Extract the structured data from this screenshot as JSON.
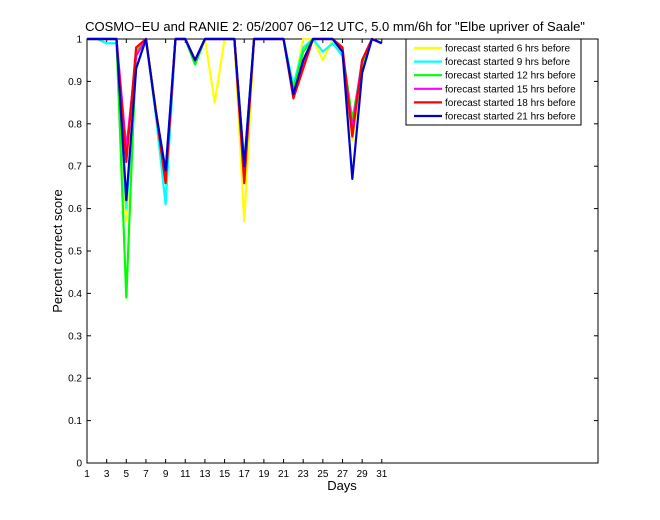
{
  "chart_data": {
    "type": "line",
    "title": "COSMO−EU and RANIE 2: 05/2007 06−12 UTC, 5.0 mm/6h for \"Elbe upriver of Saale\"",
    "xlabel": "Days",
    "ylabel": "Percent correct score",
    "xlim": [
      1,
      53
    ],
    "ylim": [
      0,
      1
    ],
    "xticks": [
      1,
      3,
      5,
      7,
      9,
      11,
      13,
      15,
      17,
      19,
      21,
      23,
      25,
      27,
      29,
      31
    ],
    "yticks": [
      0,
      0.1,
      0.2,
      0.3,
      0.4,
      0.5,
      0.6,
      0.7,
      0.8,
      0.9,
      1
    ],
    "ytick_labels": [
      "0",
      "0.1",
      "0.2",
      "0.3",
      "0.4",
      "0.5",
      "0.6",
      "0.7",
      "0.8",
      "0.9",
      "1"
    ],
    "legend_position": "top-right",
    "grid": false,
    "x": [
      1,
      2,
      3,
      4,
      5,
      6,
      7,
      8,
      9,
      10,
      11,
      12,
      13,
      14,
      15,
      16,
      17,
      18,
      19,
      20,
      21,
      22,
      23,
      24,
      25,
      26,
      27,
      28,
      29,
      30,
      31
    ],
    "series": [
      {
        "name": "forecast started 6 hrs before",
        "color": "#ffff00",
        "values": [
          1,
          1,
          1,
          1,
          0.57,
          0.96,
          1,
          0.84,
          0.67,
          1,
          1,
          0.95,
          1,
          0.85,
          1,
          1,
          0.57,
          1,
          1,
          1,
          1,
          0.88,
          1,
          1,
          0.95,
          1,
          0.96,
          0.76,
          0.94,
          1,
          0.99
        ]
      },
      {
        "name": "forecast started 9 hrs before",
        "color": "#00ffff",
        "values": [
          1,
          1,
          0.99,
          0.99,
          0.6,
          0.93,
          1,
          0.82,
          0.61,
          1,
          1,
          0.94,
          1,
          1,
          1,
          1,
          0.71,
          1,
          1,
          1,
          1,
          0.89,
          0.98,
          1,
          0.97,
          0.99,
          0.96,
          0.8,
          0.95,
          1,
          0.99
        ]
      },
      {
        "name": "forecast started 12 hrs before",
        "color": "#00ff00",
        "values": [
          1,
          1,
          1,
          1,
          0.39,
          0.97,
          1,
          0.83,
          0.66,
          1,
          1,
          0.94,
          1,
          1,
          1,
          1,
          0.7,
          1,
          1,
          1,
          1,
          0.88,
          0.97,
          1,
          1,
          1,
          0.97,
          0.81,
          0.94,
          1,
          0.99
        ]
      },
      {
        "name": "forecast started 15 hrs before",
        "color": "#ff00ff",
        "values": [
          1,
          1,
          1,
          1,
          0.74,
          0.96,
          1,
          0.83,
          0.68,
          1,
          1,
          0.95,
          1,
          1,
          1,
          1,
          0.7,
          1,
          1,
          1,
          1,
          0.87,
          0.94,
          1,
          1,
          1,
          0.97,
          0.79,
          0.95,
          1,
          0.99
        ]
      },
      {
        "name": "forecast started 18 hrs before",
        "color": "#ff0000",
        "values": [
          1,
          1,
          1,
          1,
          0.71,
          0.98,
          1,
          0.83,
          0.66,
          1,
          1,
          0.95,
          1,
          1,
          1,
          1,
          0.66,
          1,
          1,
          1,
          1,
          0.86,
          0.93,
          1,
          1,
          1,
          0.98,
          0.77,
          0.95,
          1,
          0.99
        ]
      },
      {
        "name": "forecast started 21 hrs before",
        "color": "#0000cc",
        "values": [
          1,
          1,
          1,
          1,
          0.62,
          0.93,
          1,
          0.83,
          0.69,
          1,
          1,
          0.95,
          1,
          1,
          1,
          1,
          0.7,
          1,
          1,
          1,
          1,
          0.87,
          0.95,
          1,
          1,
          1,
          0.97,
          0.67,
          0.92,
          1,
          0.99
        ]
      }
    ]
  }
}
